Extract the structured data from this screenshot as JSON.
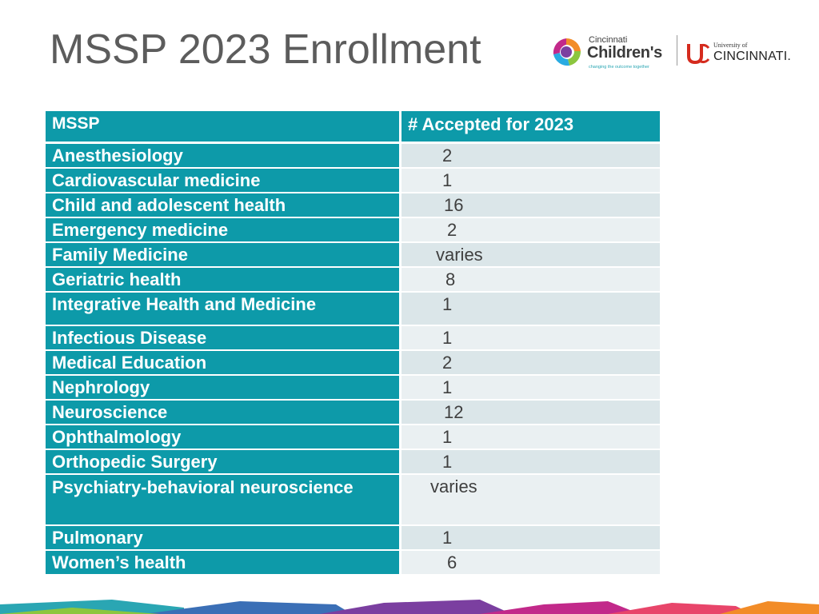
{
  "title": "MSSP 2023 Enrollment",
  "logos": {
    "cincinnati_childrens": {
      "line1": "Cincinnati",
      "line2": "Children's",
      "tagline": "changing the outcome together"
    },
    "university_of_cincinnati": {
      "line1": "University of",
      "line2": "CINCINNATI."
    }
  },
  "table": {
    "headers": [
      "MSSP",
      "#  Accepted for 2023"
    ],
    "rows": [
      {
        "program": "Anesthesiology",
        "accepted": "2"
      },
      {
        "program": "Cardiovascular medicine",
        "accepted": "1"
      },
      {
        "program": "Child and adolescent health",
        "accepted": "16"
      },
      {
        "program": "Emergency medicine",
        "accepted": "2"
      },
      {
        "program": "Family Medicine",
        "accepted": "varies"
      },
      {
        "program": "Geriatric health",
        "accepted": "8"
      },
      {
        "program": "Integrative Health and Medicine",
        "accepted": "1"
      },
      {
        "program": "Infectious Disease",
        "accepted": "1"
      },
      {
        "program": "Medical Education",
        "accepted": "2"
      },
      {
        "program": "Nephrology",
        "accepted": "1"
      },
      {
        "program": "Neuroscience",
        "accepted": "12"
      },
      {
        "program": "Ophthalmology",
        "accepted": "1"
      },
      {
        "program": "Orthopedic Surgery",
        "accepted": "1"
      },
      {
        "program": "Psychiatry-behavioral neuroscience",
        "accepted": "varies"
      },
      {
        "program": "Pulmonary",
        "accepted": "1"
      },
      {
        "program": "Women’s health",
        "accepted": "6"
      }
    ]
  },
  "colors": {
    "header_teal": "#0d9aa9",
    "row_light": "#eaf0f2",
    "row_shade": "#dbe6e9",
    "title_gray": "#5c5c5c"
  }
}
